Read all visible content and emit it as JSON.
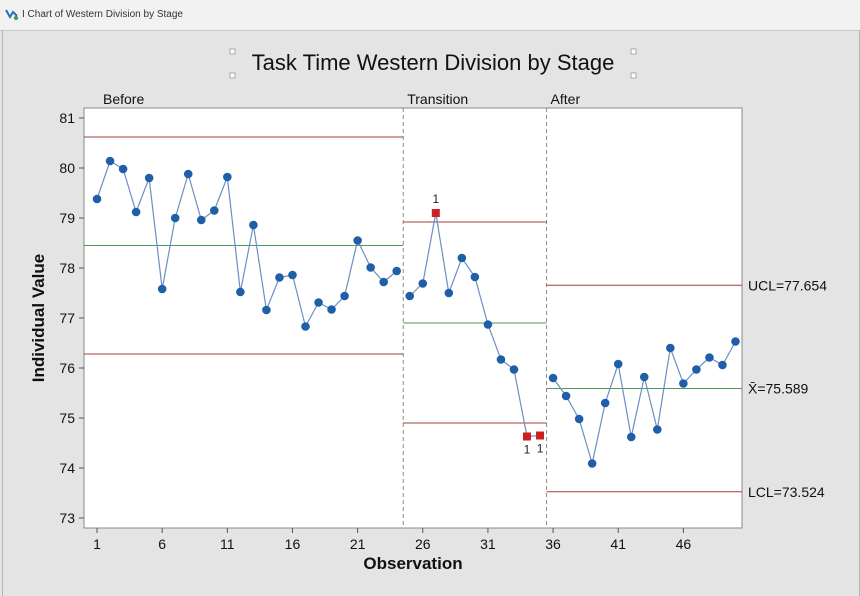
{
  "window": {
    "title": "I Chart of Western Division by Stage"
  },
  "chart_data": {
    "type": "line",
    "title": "Task Time Western Division by Stage",
    "xlabel": "Observation",
    "ylabel": "Individual Value",
    "xlim": [
      0,
      50.5
    ],
    "ylim": [
      72.8,
      81.2
    ],
    "x_ticks": [
      1,
      6,
      11,
      16,
      21,
      26,
      31,
      36,
      41,
      46
    ],
    "y_ticks": [
      73,
      74,
      75,
      76,
      77,
      78,
      79,
      80,
      81
    ],
    "colors": {
      "point": "#1f5fa8",
      "flag": "#cc1f1f",
      "line": "#6b8fc2",
      "limit": "#a63f3f",
      "center": "#4a9a5a",
      "divider": "#8a8a8a"
    },
    "stages": [
      {
        "label": "Before",
        "start": 1,
        "end": 24,
        "center": 78.45,
        "ucl": 80.62,
        "lcl": 76.28
      },
      {
        "label": "Transition",
        "start": 25,
        "end": 35,
        "center": 76.9,
        "ucl": 78.92,
        "lcl": 74.9
      },
      {
        "label": "After",
        "start": 36,
        "end": 50,
        "center": 75.589,
        "ucl": 77.654,
        "lcl": 73.524
      }
    ],
    "reference_labels": {
      "ucl": "UCL=77.654",
      "center": "X̄=75.589",
      "lcl": "LCL=73.524"
    },
    "series": [
      {
        "values": [
          [
            1,
            79.38
          ],
          [
            2,
            80.14
          ],
          [
            3,
            79.98
          ],
          [
            4,
            79.12
          ],
          [
            5,
            79.8
          ],
          [
            6,
            77.58
          ],
          [
            7,
            79.0
          ],
          [
            8,
            79.88
          ],
          [
            9,
            78.96
          ],
          [
            10,
            79.15
          ],
          [
            11,
            79.82
          ],
          [
            12,
            77.52
          ],
          [
            13,
            78.86
          ],
          [
            14,
            77.16
          ],
          [
            15,
            77.81
          ],
          [
            16,
            77.86
          ],
          [
            17,
            76.83
          ],
          [
            18,
            77.31
          ],
          [
            19,
            77.17
          ],
          [
            20,
            77.44
          ],
          [
            21,
            78.55
          ],
          [
            22,
            78.01
          ],
          [
            23,
            77.72
          ],
          [
            24,
            77.94
          ],
          [
            25,
            77.44
          ],
          [
            26,
            77.69
          ],
          [
            27,
            79.1
          ],
          [
            28,
            77.5
          ],
          [
            29,
            78.2
          ],
          [
            30,
            77.82
          ],
          [
            31,
            76.87
          ],
          [
            32,
            76.17
          ],
          [
            33,
            75.97
          ],
          [
            34,
            74.63
          ],
          [
            35,
            74.65
          ],
          [
            36,
            75.8
          ],
          [
            37,
            75.44
          ],
          [
            38,
            74.98
          ],
          [
            39,
            74.09
          ],
          [
            40,
            75.3
          ],
          [
            41,
            76.08
          ],
          [
            42,
            74.62
          ],
          [
            43,
            75.82
          ],
          [
            44,
            74.77
          ],
          [
            45,
            76.4
          ],
          [
            46,
            75.69
          ],
          [
            47,
            75.97
          ],
          [
            48,
            76.21
          ],
          [
            49,
            76.06
          ],
          [
            50,
            76.53
          ]
        ]
      }
    ],
    "flagged": [
      {
        "x": 27,
        "label": "1",
        "position": "above"
      },
      {
        "x": 34,
        "label": "1",
        "position": "below"
      },
      {
        "x": 35,
        "label": "1",
        "position": "below"
      }
    ]
  }
}
